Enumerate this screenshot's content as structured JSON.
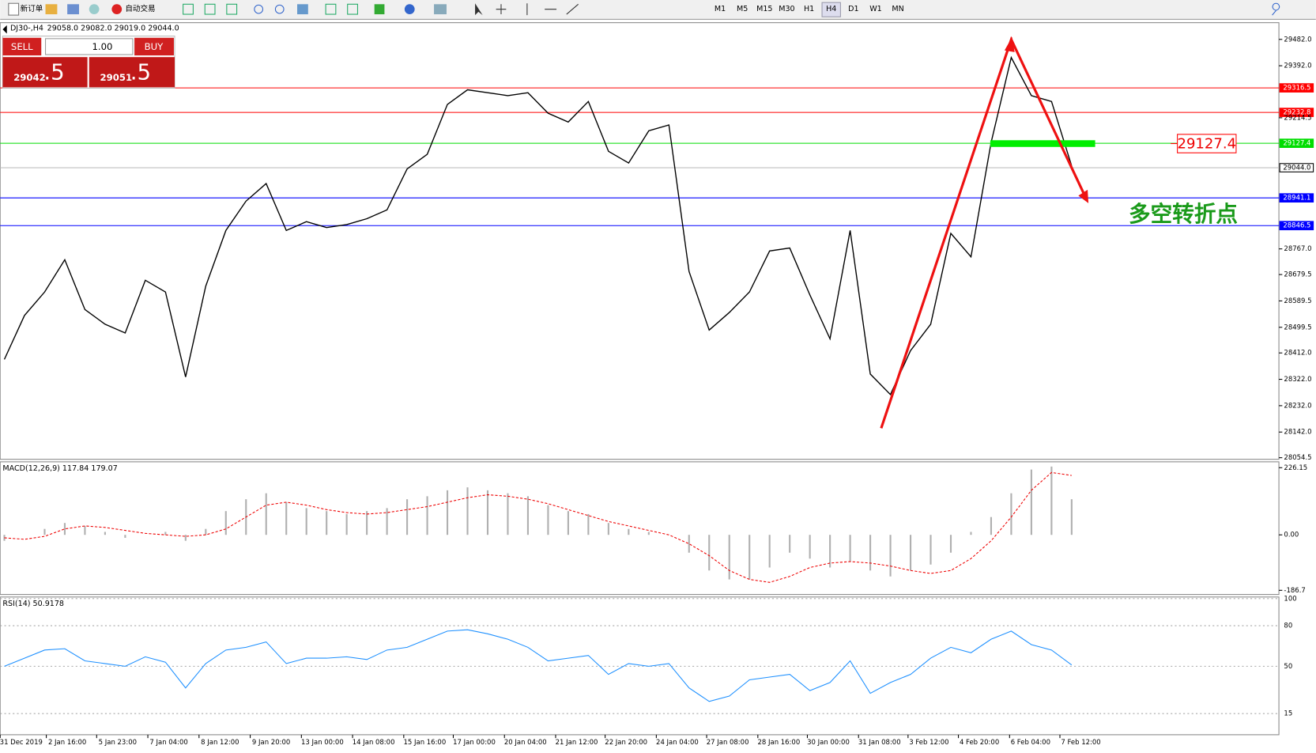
{
  "toolbar": {
    "new_order": "新订单",
    "auto_trade": "自动交易",
    "timeframes": [
      "M1",
      "M5",
      "M15",
      "M30",
      "H1",
      "H4",
      "D1",
      "W1",
      "MN"
    ]
  },
  "trade_panel": {
    "sell": "SELL",
    "buy": "BUY",
    "lots": "1.00",
    "bid": "29042",
    "bid_frac": ".5",
    "ask": "29051",
    "ask_frac": ".5"
  },
  "price_chart": {
    "type": "line",
    "title": "DJ30-,H4",
    "ohlc_text": "29058.0 29082.0 29019.0 29044.0",
    "x_labels": [
      "31 Dec 2019",
      "2 Jan 16:00",
      "5 Jan 23:00",
      "7 Jan 04:00",
      "8 Jan 12:00",
      "9 Jan 20:00",
      "13 Jan 00:00",
      "14 Jan 08:00",
      "15 Jan 16:00",
      "17 Jan 00:00",
      "20 Jan 04:00",
      "21 Jan 12:00",
      "22 Jan 20:00",
      "24 Jan 04:00",
      "27 Jan 08:00",
      "28 Jan 16:00",
      "30 Jan 00:00",
      "31 Jan 08:00",
      "3 Feb 12:00",
      "4 Feb 20:00",
      "6 Feb 04:00",
      "7 Feb 12:00"
    ],
    "closes": [
      28390,
      28540,
      28620,
      28730,
      28560,
      28510,
      28480,
      28660,
      28620,
      28330,
      28640,
      28830,
      28930,
      28990,
      28830,
      28860,
      28840,
      28850,
      28870,
      28900,
      29040,
      29090,
      29260,
      29310,
      29300,
      29290,
      29300,
      29230,
      29200,
      29270,
      29100,
      29060,
      29170,
      29190,
      28690,
      28490,
      28550,
      28620,
      28760,
      28770,
      28610,
      28460,
      28830,
      28340,
      28270,
      28420,
      28510,
      28820,
      28740,
      29130,
      29420,
      29290,
      29270,
      29050
    ],
    "color": "#000000",
    "ylim": [
      28049,
      29539
    ],
    "yticks": [
      {
        "value": 29482,
        "label": "29482.0"
      },
      {
        "value": 29392,
        "label": "29392.0"
      },
      {
        "value": 29214.5,
        "label": "29214.5"
      },
      {
        "value": 28767,
        "label": "28767.0"
      },
      {
        "value": 28679.5,
        "label": "28679.5"
      },
      {
        "value": 28589.5,
        "label": "28589.5"
      },
      {
        "value": 28499.5,
        "label": "28499.5"
      },
      {
        "value": 28412,
        "label": "28412.0"
      },
      {
        "value": 28322,
        "label": "28322.0"
      },
      {
        "value": 28232,
        "label": "28232.0"
      },
      {
        "value": 28142,
        "label": "28142.0"
      },
      {
        "value": 28054.5,
        "label": "28054.5"
      }
    ],
    "levels": [
      {
        "value": 29316.5,
        "label": "29316.5",
        "color": "#ff0000"
      },
      {
        "value": 29232.8,
        "label": "29232.8",
        "color": "#ff0000"
      },
      {
        "value": 29127.4,
        "label": "29127.4",
        "color": "#00dd00"
      },
      {
        "value": 29044,
        "label": "29044.0",
        "color": "#c0c0c0"
      },
      {
        "value": 28941.1,
        "label": "28941.1",
        "color": "#0000ff"
      },
      {
        "value": 28846.5,
        "label": "28846.5",
        "color": "#0000ff"
      }
    ],
    "annotation_price": "29127.4",
    "annotation_text": "多空转折点"
  },
  "macd": {
    "title": "MACD(12,26,9) 117.84 179.07",
    "histogram": [
      -20,
      0,
      20,
      40,
      30,
      10,
      -10,
      0,
      10,
      -20,
      20,
      80,
      120,
      140,
      110,
      90,
      80,
      70,
      80,
      90,
      120,
      130,
      150,
      160,
      150,
      140,
      130,
      100,
      80,
      70,
      40,
      20,
      10,
      0,
      -60,
      -120,
      -150,
      -150,
      -110,
      -60,
      -80,
      -110,
      -90,
      -120,
      -140,
      -120,
      -100,
      -60,
      10,
      60,
      140,
      220,
      230,
      120
    ],
    "signal": [
      -10,
      -15,
      -5,
      20,
      30,
      25,
      15,
      5,
      0,
      -5,
      0,
      20,
      60,
      100,
      110,
      100,
      85,
      75,
      70,
      75,
      85,
      95,
      110,
      125,
      135,
      130,
      120,
      105,
      85,
      65,
      45,
      30,
      15,
      0,
      -30,
      -70,
      -120,
      -150,
      -160,
      -140,
      -110,
      -95,
      -90,
      -95,
      -105,
      -120,
      -130,
      -120,
      -80,
      -20,
      60,
      150,
      210,
      200
    ],
    "ylim": [
      -200.8,
      245.9
    ],
    "yticks": [
      226.15,
      {
        "value": 0,
        "label": "0.00"
      },
      -186.7
    ]
  },
  "rsi": {
    "title": "RSI(14) 50.9178",
    "values": [
      50,
      56,
      62,
      63,
      54,
      52,
      50,
      57,
      53,
      34,
      52,
      62,
      64,
      68,
      52,
      56,
      56,
      57,
      55,
      62,
      64,
      70,
      76,
      77,
      74,
      70,
      64,
      54,
      56,
      58,
      44,
      52,
      50,
      52,
      34,
      24,
      28,
      40,
      42,
      44,
      32,
      38,
      54,
      30,
      38,
      44,
      56,
      64,
      60,
      70,
      76,
      66,
      62,
      51
    ],
    "color": "#1e90ff",
    "ylim": [
      -0.6,
      101.2
    ],
    "yticks": [
      100,
      80,
      50,
      15
    ]
  }
}
